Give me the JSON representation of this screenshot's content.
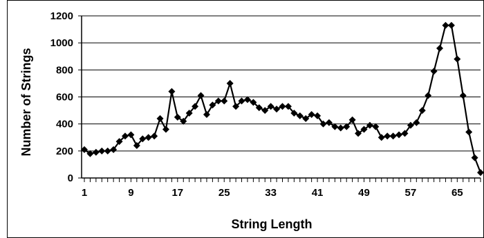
{
  "chart_data": {
    "type": "line",
    "title": "",
    "xlabel": "String Length",
    "ylabel": "Number of Strings",
    "xlim": [
      1,
      69
    ],
    "ylim": [
      0,
      1200
    ],
    "yticks": [
      0,
      200,
      400,
      600,
      800,
      1000,
      1200
    ],
    "xtick_labels": [
      "1",
      "9",
      "17",
      "25",
      "33",
      "41",
      "49",
      "57",
      "65"
    ],
    "grid": "horizontal",
    "marker": "diamond",
    "series": [
      {
        "color": "#000000",
        "x": [
          1,
          2,
          3,
          4,
          5,
          6,
          7,
          8,
          9,
          10,
          11,
          12,
          13,
          14,
          15,
          16,
          17,
          18,
          19,
          20,
          21,
          22,
          23,
          24,
          25,
          26,
          27,
          28,
          29,
          30,
          31,
          32,
          33,
          34,
          35,
          36,
          37,
          38,
          39,
          40,
          41,
          42,
          43,
          44,
          45,
          46,
          47,
          48,
          49,
          50,
          51,
          52,
          53,
          54,
          55,
          56,
          57,
          58,
          59,
          60,
          61,
          62,
          63,
          64,
          65,
          66,
          67,
          68,
          69
        ],
        "values": [
          210,
          180,
          190,
          200,
          200,
          210,
          270,
          310,
          320,
          240,
          290,
          300,
          310,
          440,
          360,
          640,
          450,
          420,
          480,
          530,
          610,
          470,
          540,
          570,
          570,
          700,
          530,
          570,
          580,
          560,
          520,
          500,
          530,
          510,
          530,
          530,
          480,
          460,
          440,
          470,
          460,
          400,
          410,
          380,
          370,
          380,
          430,
          330,
          360,
          390,
          380,
          300,
          310,
          310,
          320,
          330,
          390,
          410,
          500,
          610,
          790,
          960,
          1130,
          1130,
          880,
          610,
          340,
          150,
          40
        ]
      }
    ]
  }
}
